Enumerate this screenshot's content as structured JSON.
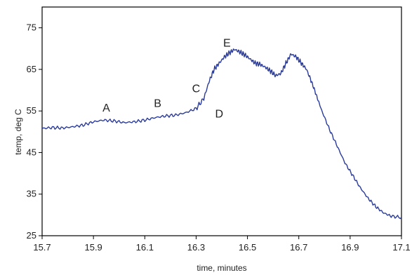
{
  "chart_data": {
    "type": "line",
    "title": "",
    "xlabel": "time, minutes",
    "ylabel": "temp, deg C",
    "xlim": [
      15.7,
      17.1
    ],
    "ylim": [
      25,
      80
    ],
    "x_ticks": [
      "15.7",
      "15.9",
      "16.1",
      "16.3",
      "16.5",
      "16.7",
      "16.9",
      "17.1"
    ],
    "y_ticks": [
      "25",
      "35",
      "45",
      "55",
      "65",
      "75"
    ],
    "grid": false,
    "legend": "none",
    "line_color": "#2a3b9a",
    "series": [
      {
        "x": [
          15.7,
          15.74,
          15.78,
          15.82,
          15.86,
          15.9,
          15.94,
          15.98,
          16.02,
          16.06,
          16.1,
          16.14,
          16.18,
          16.22,
          16.26,
          16.3,
          16.33,
          16.35,
          16.37,
          16.39,
          16.41,
          16.43,
          16.45,
          16.47,
          16.49,
          16.51,
          16.53,
          16.55,
          16.57,
          16.59,
          16.61,
          16.63,
          16.65,
          16.67,
          16.69,
          16.71,
          16.73,
          16.75,
          16.77,
          16.79,
          16.82,
          16.85,
          16.88,
          16.91,
          16.94,
          16.97,
          17.0,
          17.03,
          17.06,
          17.1
        ],
        "y": [
          50.8,
          51.0,
          50.9,
          51.2,
          51.6,
          52.4,
          52.8,
          52.6,
          52.2,
          52.4,
          52.8,
          53.4,
          53.8,
          54.0,
          54.6,
          55.6,
          58.0,
          62.0,
          65.0,
          66.5,
          68.0,
          69.0,
          69.8,
          69.2,
          68.5,
          67.5,
          66.5,
          66.2,
          65.5,
          64.6,
          63.5,
          64.0,
          66.5,
          68.7,
          68.0,
          66.5,
          65.0,
          62.0,
          58.5,
          55.0,
          50.5,
          46.5,
          42.5,
          39.5,
          36.5,
          34.0,
          32.0,
          30.5,
          29.7,
          29.4
        ]
      }
    ],
    "annotations": [
      {
        "label": "A",
        "x": 15.95,
        "y": 54.9
      },
      {
        "label": "B",
        "x": 16.15,
        "y": 56.0
      },
      {
        "label": "C",
        "x": 16.3,
        "y": 59.5
      },
      {
        "label": "D",
        "x": 16.39,
        "y": 53.4
      },
      {
        "label": "E",
        "x": 16.42,
        "y": 70.5
      }
    ]
  }
}
